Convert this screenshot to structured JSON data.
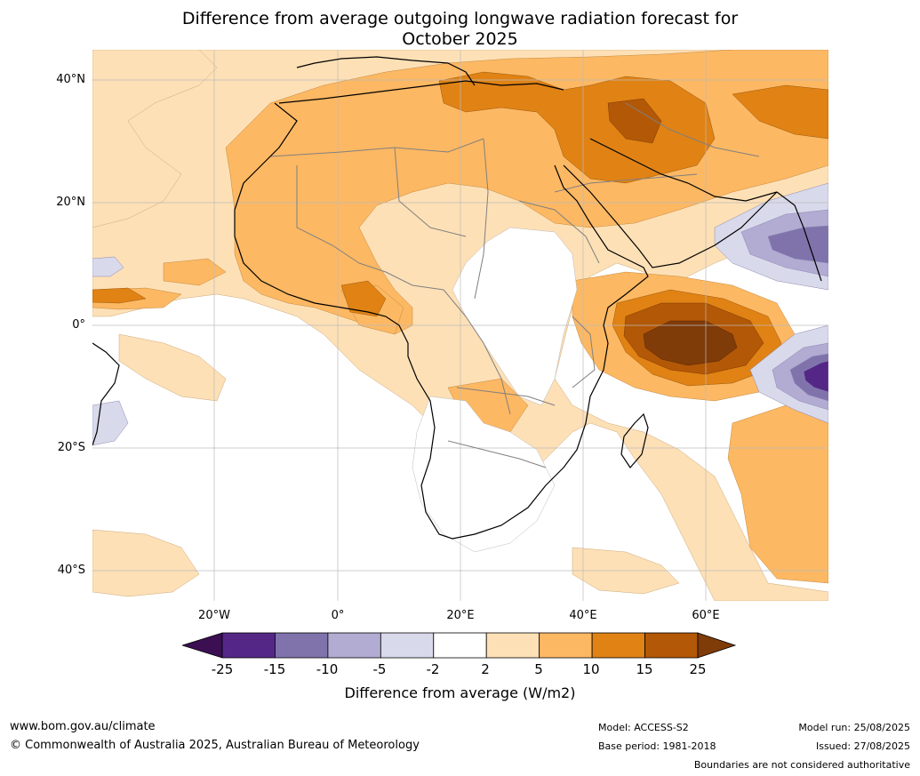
{
  "title": {
    "line1": "Difference from average outgoing longwave radiation forecast for",
    "line2": "October 2025"
  },
  "map": {
    "lat_labels": [
      "40°N",
      "20°N",
      "0°",
      "20°S",
      "40°S"
    ],
    "lon_labels": [
      "20°W",
      "0°",
      "20°E",
      "40°E",
      "60°E"
    ]
  },
  "colorbar": {
    "ticks": [
      "-25",
      "-15",
      "-10",
      "-5",
      "-2",
      "2",
      "5",
      "10",
      "15",
      "25"
    ],
    "colors": [
      "#3b0f52",
      "#542787",
      "#8073ac",
      "#b2abd2",
      "#d8daeb",
      "#ffffff",
      "#fee0b6",
      "#fdb863",
      "#e08214",
      "#b35806",
      "#7f3b08"
    ],
    "label": "Difference from average (W/m2)"
  },
  "footer": {
    "website": "www.bom.gov.au/climate",
    "copyright": "© Commonwealth of Australia 2025, Australian Bureau of Meteorology",
    "model": "Model: ACCESS-S2",
    "base_period": "Base period: 1981-2018",
    "model_run": "Model run: 25/08/2025",
    "issued": "Issued: 27/08/2025",
    "disclaimer": "Boundaries are not considered authoritative"
  }
}
